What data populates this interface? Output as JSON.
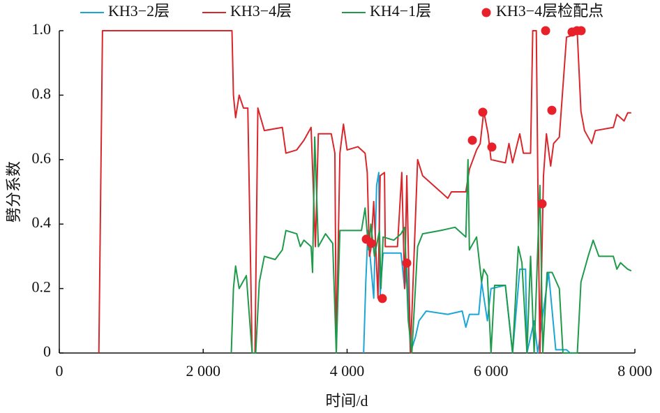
{
  "chart_data": {
    "type": "line",
    "xlabel": "时间/d",
    "ylabel": "劈分系数",
    "xlim": [
      0,
      8000
    ],
    "ylim": [
      0,
      1
    ],
    "xticks": [
      0,
      {
        "value": 2000,
        "label": "2 000"
      },
      {
        "value": 4000,
        "label": "4 000"
      },
      {
        "value": 6000,
        "label": "6 000"
      },
      {
        "value": 8000,
        "label": "8 000"
      }
    ],
    "yticks": [
      0,
      0.2,
      0.4,
      0.6,
      0.8,
      {
        "value": 1,
        "label": "1.0"
      }
    ],
    "series": [
      {
        "name": "KH3−2层",
        "color": "#1ba6d8",
        "type": "line",
        "x": [
          4230,
          4260,
          4290,
          4320,
          4370,
          4410,
          4440,
          4460,
          4500,
          4750,
          4800,
          4830,
          4880,
          4950,
          5000,
          5100,
          5400,
          5600,
          5650,
          5700,
          5830,
          5870,
          5950,
          6000,
          6200,
          6300,
          6400,
          6480,
          6500,
          6600,
          6650,
          6800,
          6900,
          7050,
          7100
        ],
        "values": [
          0,
          0.22,
          0.38,
          0.3,
          0.17,
          0.52,
          0.56,
          0.18,
          0.31,
          0.31,
          0.2,
          0.27,
          0,
          0.05,
          0.1,
          0.13,
          0.12,
          0.13,
          0.08,
          0.12,
          0.12,
          0.22,
          0.1,
          0.2,
          0.21,
          0,
          0.26,
          0.26,
          0,
          0.1,
          0,
          0.25,
          0.01,
          0.01,
          0
        ]
      },
      {
        "name": "KH3−4层",
        "color": "#d9262b",
        "type": "line",
        "x": [
          550,
          600,
          2400,
          2420,
          2450,
          2500,
          2560,
          2620,
          2680,
          2720,
          2760,
          2850,
          3100,
          3150,
          3300,
          3400,
          3500,
          3560,
          3600,
          3780,
          3830,
          3850,
          3900,
          3950,
          4000,
          4150,
          4250,
          4280,
          4310,
          4330,
          4370,
          4430,
          4460,
          4520,
          4530,
          4700,
          4760,
          4800,
          4830,
          4880,
          4980,
          5050,
          5300,
          5400,
          5450,
          5650,
          5700,
          5800,
          5850,
          5900,
          5960,
          6000,
          6200,
          6250,
          6300,
          6400,
          6450,
          6550,
          6580,
          6630,
          6660,
          6680,
          6730,
          6770,
          6830,
          6870,
          6950,
          7050,
          7200,
          7250,
          7300,
          7400,
          7450,
          7700,
          7750,
          7850,
          7900,
          7950
        ],
        "values": [
          0,
          1,
          1,
          0.8,
          0.73,
          0.8,
          0.76,
          0.76,
          0,
          0,
          0.76,
          0.69,
          0.7,
          0.62,
          0.63,
          0.66,
          0.7,
          0.33,
          0.68,
          0.68,
          0.62,
          0,
          0.62,
          0.71,
          0.63,
          0.64,
          0.62,
          0.56,
          0.3,
          0.32,
          0.47,
          0.17,
          0.55,
          0.56,
          0.33,
          0.33,
          0.56,
          0.2,
          0.55,
          0,
          0.6,
          0.55,
          0.5,
          0.48,
          0.5,
          0.5,
          0.57,
          0.63,
          0.65,
          0.75,
          0.68,
          0.6,
          0.59,
          0.65,
          0.59,
          0.68,
          0.62,
          0.62,
          1,
          1,
          0.35,
          0,
          0.55,
          0.68,
          0.58,
          0.65,
          0.67,
          0.98,
          0.99,
          0.75,
          0.69,
          0.65,
          0.69,
          0.7,
          0.74,
          0.72,
          0.745,
          0.745
        ]
      },
      {
        "name": "KH4−1层",
        "color": "#1e9a4a",
        "type": "line",
        "x": [
          2390,
          2420,
          2450,
          2500,
          2600,
          2680,
          2730,
          2780,
          2850,
          3000,
          3100,
          3150,
          3300,
          3350,
          3400,
          3500,
          3520,
          3550,
          3600,
          3700,
          3800,
          3850,
          3900,
          4200,
          4250,
          4300,
          4330,
          4380,
          4450,
          4470,
          4500,
          4650,
          4750,
          4800,
          4850,
          4900,
          4980,
          5050,
          5300,
          5500,
          5650,
          5680,
          5700,
          5800,
          5870,
          5900,
          5950,
          6000,
          6050,
          6200,
          6300,
          6380,
          6430,
          6500,
          6550,
          6600,
          6680,
          6720,
          6780,
          6850,
          6950,
          7000,
          7200,
          7250,
          7350,
          7420,
          7500,
          7700,
          7750,
          7800,
          7900,
          7950
        ],
        "values": [
          0,
          0.2,
          0.27,
          0.2,
          0.24,
          0,
          0,
          0.22,
          0.3,
          0.29,
          0.32,
          0.38,
          0.37,
          0.33,
          0.35,
          0.33,
          0.25,
          0.67,
          0.33,
          0.37,
          0.34,
          0,
          0.38,
          0.38,
          0.45,
          0.32,
          0.4,
          0.3,
          0.38,
          0.2,
          0.36,
          0.35,
          0.37,
          0.39,
          0.1,
          0,
          0.33,
          0.37,
          0.38,
          0.39,
          0.36,
          0.6,
          0.32,
          0.36,
          0.22,
          0.26,
          0.24,
          0,
          0.21,
          0.21,
          0,
          0.33,
          0.28,
          0,
          0.3,
          0,
          0.52,
          0,
          0.25,
          0.25,
          0.2,
          0,
          0,
          0.22,
          0.3,
          0.35,
          0.3,
          0.3,
          0.26,
          0.28,
          0.26,
          0.255
        ]
      },
      {
        "name": "KH3−4层检配点",
        "color": "#e8202a",
        "type": "scatter",
        "x": [
          4267,
          4335,
          4490,
          4829,
          5741,
          5886,
          6012,
          6710,
          6759,
          6846,
          7127,
          7195,
          7253
        ],
        "values": [
          0.353,
          0.34,
          0.169,
          0.279,
          0.66,
          0.747,
          0.639,
          0.463,
          1,
          0.753,
          0.996,
          1,
          1
        ]
      }
    ]
  }
}
